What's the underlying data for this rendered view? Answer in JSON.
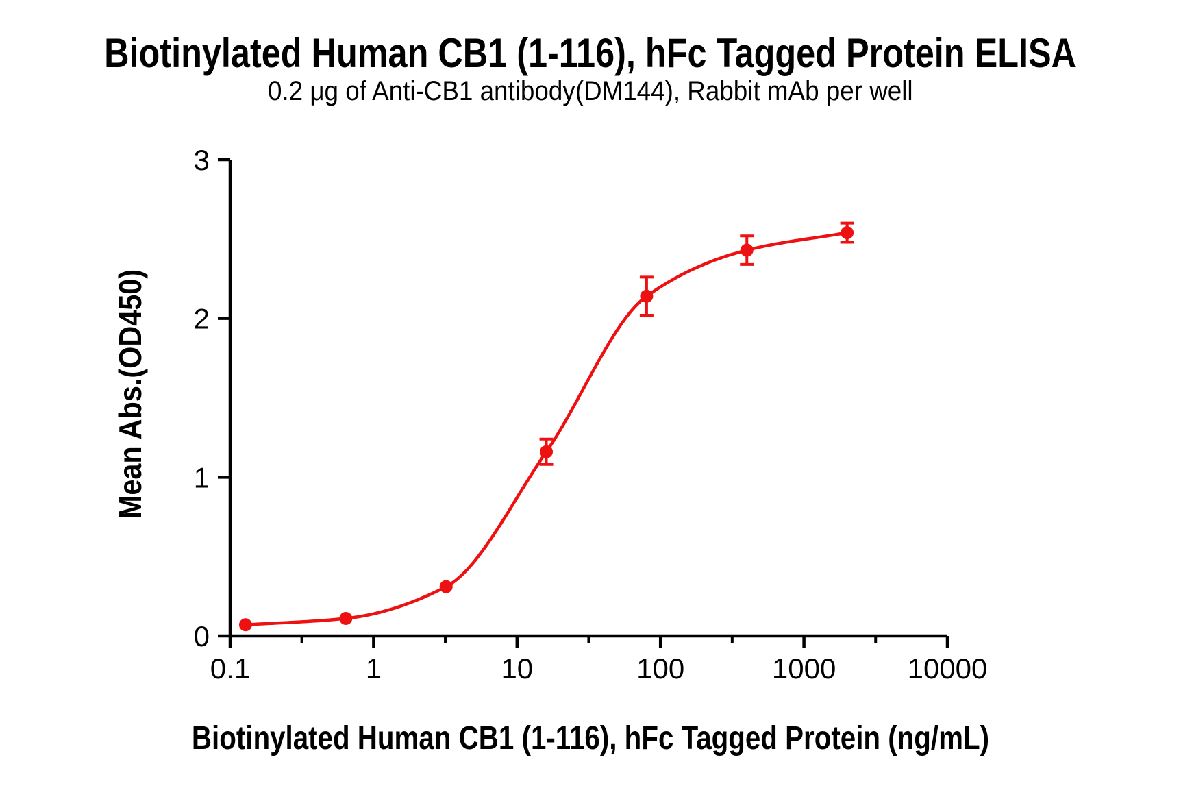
{
  "chart_data": {
    "type": "scatter",
    "title": "Biotinylated Human CB1 (1-116), hFc Tagged Protein ELISA",
    "subtitle": "0.2 μg of Anti-CB1 antibody(DM144), Rabbit mAb per well",
    "xlabel": "Biotinylated Human CB1 (1-116), hFc Tagged Protein (ng/mL)",
    "ylabel": "Mean Abs.(OD450)",
    "x_scale": "log10",
    "xlim": [
      0.1,
      10000
    ],
    "ylim": [
      0,
      3
    ],
    "x": [
      0.128,
      0.64,
      3.2,
      16,
      80,
      400,
      2000
    ],
    "y": [
      0.07,
      0.11,
      0.31,
      1.16,
      2.14,
      2.43,
      2.54
    ],
    "y_err": [
      0,
      0,
      0,
      0.08,
      0.12,
      0.09,
      0.06
    ],
    "x_major_ticks": [
      0.1,
      1,
      10,
      100,
      1000,
      10000
    ],
    "x_major_tick_labels": [
      "0.1",
      "1",
      "10",
      "100",
      "1000",
      "10000"
    ],
    "x_minor_ticks": [
      0.316,
      3.16,
      31.6,
      316,
      3160
    ],
    "y_ticks": [
      0,
      1,
      2,
      3
    ],
    "y_tick_labels": [
      "0",
      "1",
      "2",
      "3"
    ],
    "grid": false,
    "legend": null,
    "curve_fit": "smooth sigmoid (4PL-style) through points",
    "line_color": "#EE1111",
    "marker_color": "#EE1111",
    "axis_color": "#000000"
  }
}
